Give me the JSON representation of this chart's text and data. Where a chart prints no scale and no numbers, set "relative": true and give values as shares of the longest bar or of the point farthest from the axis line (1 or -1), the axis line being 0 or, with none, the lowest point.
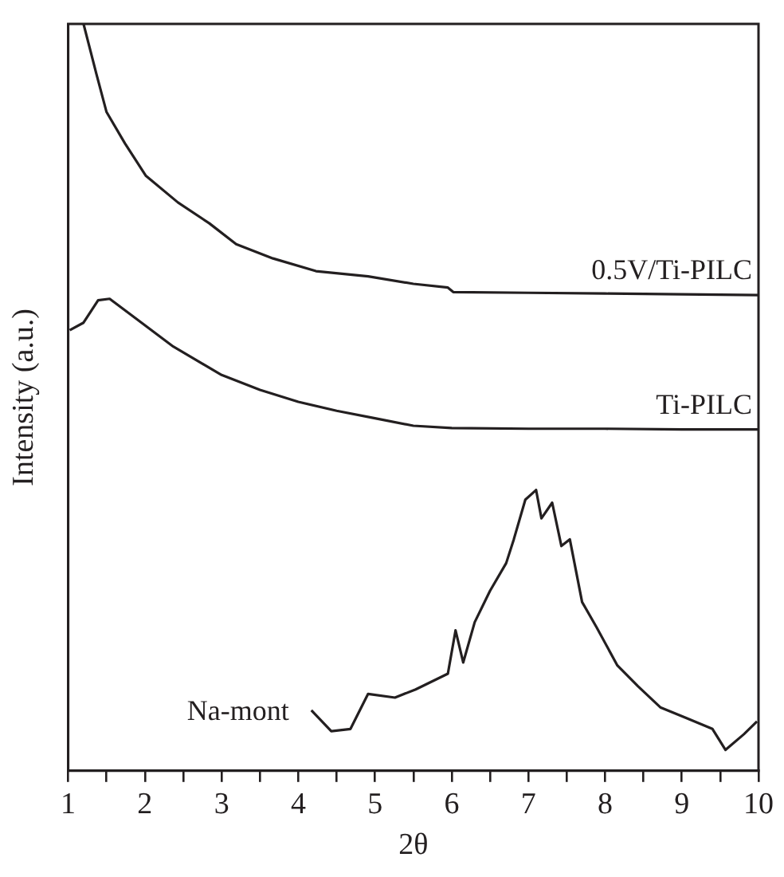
{
  "chart_data": {
    "type": "line",
    "relative": true,
    "xlabel": "2θ",
    "ylabel": "Intensity (a.u.)",
    "xlim": [
      1,
      10
    ],
    "xticks": [
      1,
      {
        "value": 1.5,
        "label": null
      },
      2,
      {
        "value": 2.5,
        "label": null
      },
      3,
      {
        "value": 3.5,
        "label": null
      },
      4,
      {
        "value": 4.5,
        "label": null
      },
      5,
      {
        "value": 5.5,
        "label": null
      },
      6,
      {
        "value": 6.5,
        "label": null
      },
      7,
      {
        "value": 7.5,
        "label": null
      },
      8,
      {
        "value": 8.5,
        "label": null
      },
      9,
      {
        "value": 9.5,
        "label": null
      },
      10
    ],
    "grid": false,
    "legend": false,
    "marker": "none",
    "line_style": "solid",
    "series": [
      {
        "name": "0.5V/Ti-PILC",
        "color": "#231f20",
        "x": [
          1.2,
          1.37,
          1.5,
          1.74,
          2.01,
          2.43,
          2.84,
          3.19,
          3.67,
          4.23,
          4.91,
          5.5,
          5.95,
          6.02,
          7,
          8,
          9,
          10
        ],
        "values": [
          1.0,
          0.932,
          0.882,
          0.84,
          0.797,
          0.761,
          0.733,
          0.705,
          0.686,
          0.669,
          0.662,
          0.652,
          0.647,
          0.641,
          0.64,
          0.639,
          0.638,
          0.637
        ]
      },
      {
        "name": "Ti-PILC",
        "color": "#231f20",
        "x": [
          1.02,
          1.2,
          1.39,
          1.54,
          1.89,
          2.37,
          3,
          3.5,
          4,
          4.5,
          5,
          5.5,
          6,
          7,
          8,
          9,
          10
        ],
        "values": [
          0.59,
          0.6,
          0.63,
          0.632,
          0.605,
          0.568,
          0.53,
          0.51,
          0.494,
          0.482,
          0.472,
          0.462,
          0.459,
          0.458,
          0.458,
          0.457,
          0.457
        ]
      },
      {
        "name": "Na-mont",
        "color": "#231f20",
        "x": [
          4.17,
          4.43,
          4.68,
          4.91,
          5.26,
          5.53,
          5.95,
          6.05,
          6.15,
          6.3,
          6.5,
          6.71,
          6.81,
          6.96,
          7.1,
          7.17,
          7.31,
          7.43,
          7.54,
          7.7,
          7.89,
          8.16,
          8.43,
          8.72,
          9.05,
          9.4,
          9.57,
          9.81,
          9.98
        ],
        "values": [
          0.081,
          0.053,
          0.056,
          0.103,
          0.098,
          0.109,
          0.13,
          0.188,
          0.145,
          0.199,
          0.241,
          0.278,
          0.31,
          0.363,
          0.376,
          0.338,
          0.359,
          0.301,
          0.31,
          0.226,
          0.192,
          0.141,
          0.113,
          0.085,
          0.071,
          0.056,
          0.028,
          0.049,
          0.066
        ]
      }
    ]
  }
}
